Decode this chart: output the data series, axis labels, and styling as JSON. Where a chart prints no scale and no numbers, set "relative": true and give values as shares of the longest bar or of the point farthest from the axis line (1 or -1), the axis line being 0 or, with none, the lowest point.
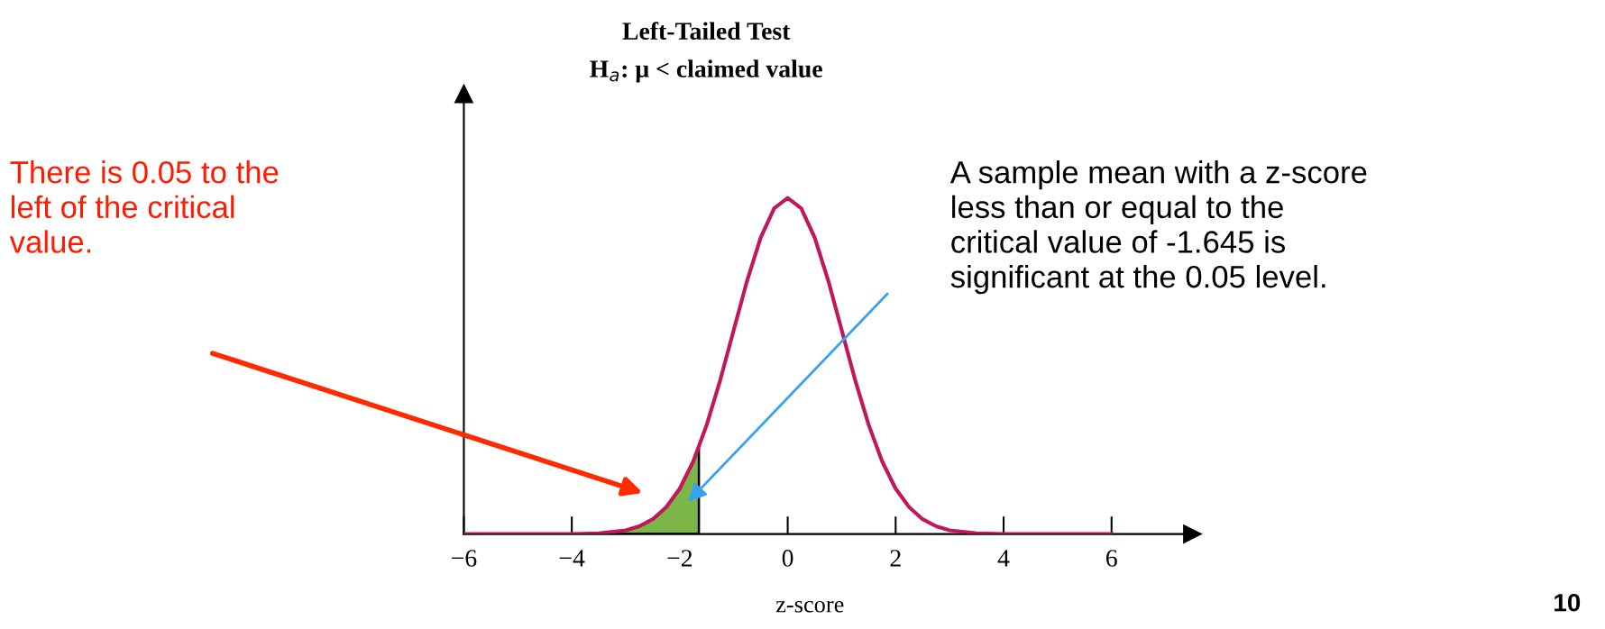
{
  "chart_data": {
    "type": "line",
    "title": "Left-Tailed Test",
    "subtitle": "H$_{a}$: μ < claimed value",
    "xlabel": "z-score",
    "relative": true,
    "xlim": [
      -6,
      7.5
    ],
    "xticks": [
      {
        "value": -6,
        "label": "−6"
      },
      {
        "value": -4,
        "label": "−4"
      },
      {
        "value": -2,
        "label": "−2"
      },
      0,
      2,
      4,
      6
    ],
    "tick_labels": "x",
    "grid": false,
    "series": [
      {
        "color": "#c0185a",
        "x": [
          -6,
          -5,
          -4,
          -3.5,
          -3,
          -2.75,
          -2.5,
          -2.25,
          -2,
          -1.75,
          -1.5,
          -1.25,
          -1,
          -0.75,
          -0.5,
          -0.25,
          0,
          0.25,
          0.5,
          0.75,
          1,
          1.25,
          1.5,
          1.75,
          2,
          2.25,
          2.5,
          2.75,
          3,
          3.5,
          4,
          5,
          6
        ],
        "values": [
          0,
          0,
          0,
          0.002,
          0.011,
          0.023,
          0.044,
          0.08,
          0.135,
          0.216,
          0.325,
          0.458,
          0.607,
          0.755,
          0.882,
          0.969,
          1,
          0.969,
          0.882,
          0.755,
          0.607,
          0.458,
          0.325,
          0.216,
          0.135,
          0.08,
          0.044,
          0.023,
          0.011,
          0.002,
          0,
          0,
          0
        ]
      },
      {
        "type": "area",
        "color": "#7ab648",
        "x": [
          -3.5,
          -3,
          -2.75,
          -2.5,
          -2.25,
          -2,
          -1.75,
          -1.645
        ],
        "values": [
          0.002,
          0.011,
          0.023,
          0.044,
          0.08,
          0.135,
          0.216,
          0.258
        ]
      }
    ],
    "annotations": [
      "There is 0.05 to the\nleft of the critical\nvalue.",
      "A sample mean with a z-score\nless than or equal to the\ncritical value of -1.645 is\nsignificant at the 0.05 level.",
      "10"
    ]
  }
}
